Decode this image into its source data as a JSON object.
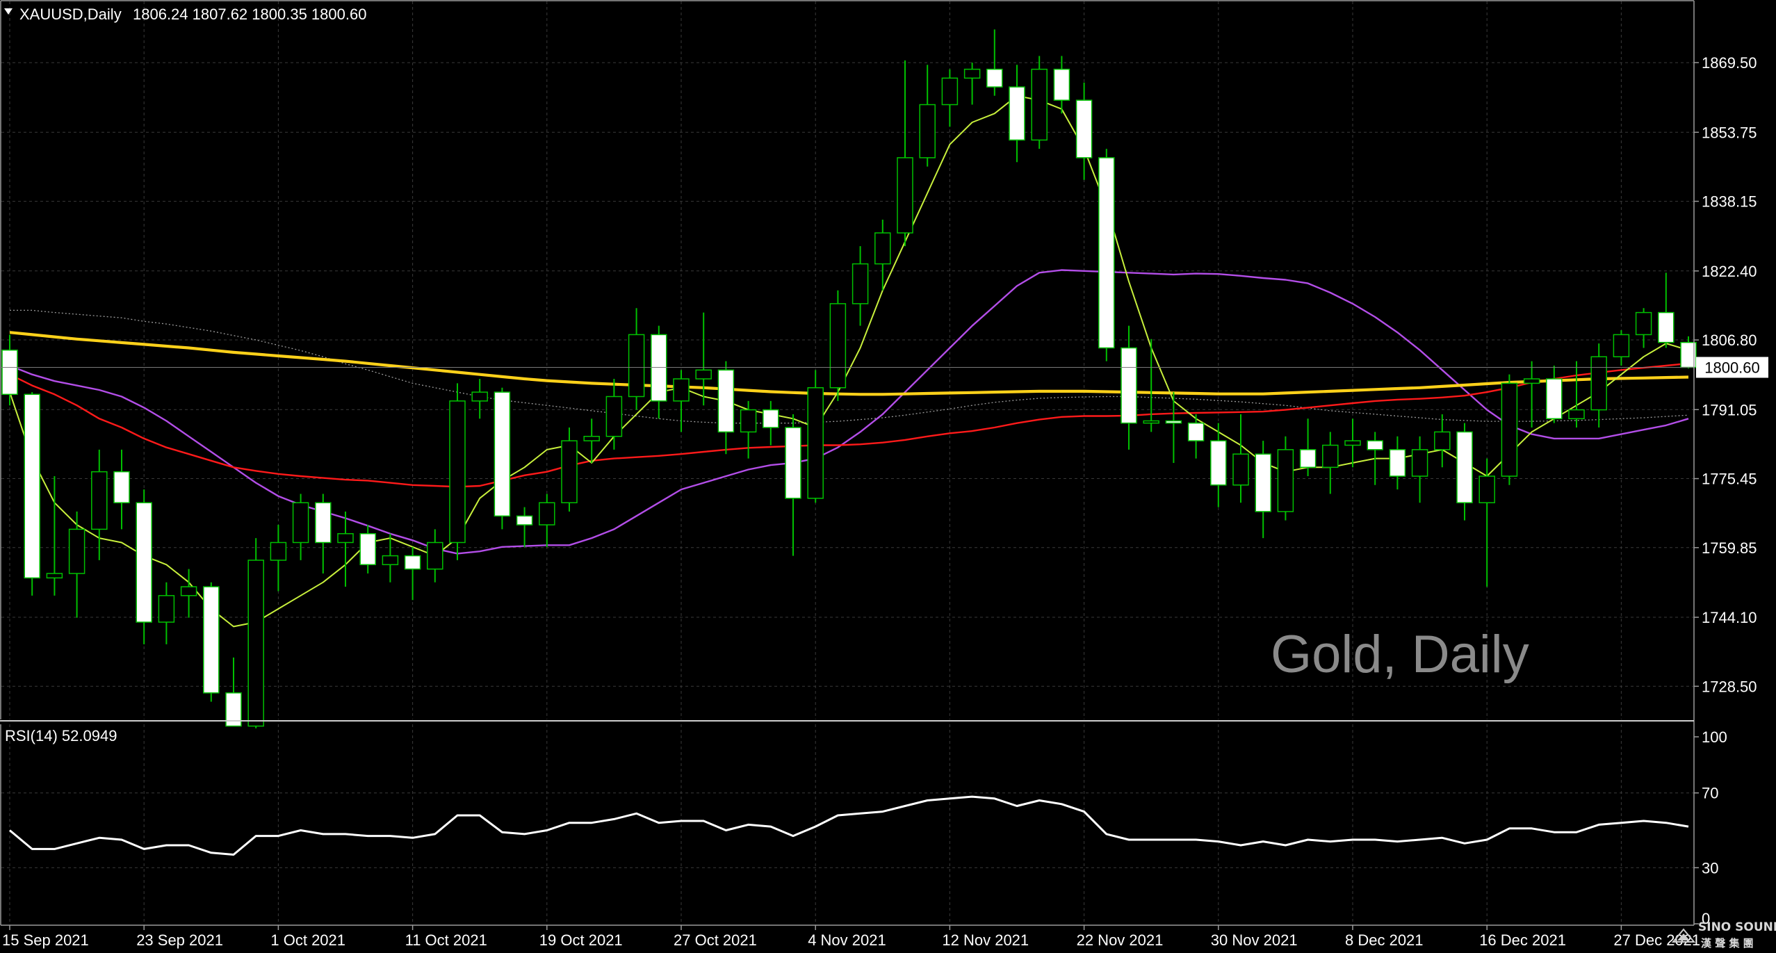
{
  "window": {
    "symbol_header": "XAUUSD,Daily",
    "ohlc_header": "1806.24 1807.62 1800.35 1800.60",
    "current_price_label": "1800.60",
    "watermark": "Gold, Daily",
    "rsi_header": "RSI(14) 52.0949",
    "logo_name": "SINO SOUND",
    "logo_sub": "漢 聲 集 團"
  },
  "colors": {
    "background": "#000000",
    "grid": "#3a3a3a",
    "bull_candle": "#00c000",
    "bear_candle_fill": "#ffffff",
    "ma_fast": "#c8f03c",
    "ma_red": "#ff1a1a",
    "ma_yellow": "#ffd11a",
    "ma_purple": "#b34ee8",
    "ma_grey": "#9a9a9a",
    "rsi_line": "#ffffff"
  },
  "chart_data": [
    {
      "type": "candlestick",
      "symbol": "XAUUSD",
      "timeframe": "Daily",
      "ohlc_current": {
        "open": 1806.24,
        "high": 1807.62,
        "low": 1800.35,
        "close": 1800.6
      },
      "y_ticks": [
        "1869.50",
        "1853.75",
        "1838.15",
        "1822.40",
        "1806.80",
        "1791.05",
        "1775.45",
        "1759.85",
        "1744.10",
        "1728.50"
      ],
      "ylim": [
        1721.0,
        1883.5
      ],
      "x_ticks": [
        {
          "label": "15 Sep 2021",
          "index": 0
        },
        {
          "label": "23 Sep 2021",
          "index": 6
        },
        {
          "label": "1 Oct 2021",
          "index": 12
        },
        {
          "label": "11 Oct 2021",
          "index": 18
        },
        {
          "label": "19 Oct 2021",
          "index": 24
        },
        {
          "label": "27 Oct 2021",
          "index": 30
        },
        {
          "label": "4 Nov 2021",
          "index": 36
        },
        {
          "label": "12 Nov 2021",
          "index": 42
        },
        {
          "label": "22 Nov 2021",
          "index": 48
        },
        {
          "label": "30 Nov 2021",
          "index": 54
        },
        {
          "label": "8 Dec 2021",
          "index": 60
        },
        {
          "label": "16 Dec 2021",
          "index": 66
        },
        {
          "label": "27 Dec 2021",
          "index": 72
        }
      ],
      "candles": [
        [
          1804.5,
          1808.0,
          1792.0,
          1794.5
        ],
        [
          1794.5,
          1795.0,
          1749.0,
          1753.0
        ],
        [
          1753.0,
          1776.0,
          1749.0,
          1754.0
        ],
        [
          1754.0,
          1768.0,
          1744.0,
          1764.0
        ],
        [
          1764.0,
          1782.0,
          1757.0,
          1777.0
        ],
        [
          1777.0,
          1782.0,
          1764.0,
          1770.0
        ],
        [
          1770.0,
          1773.0,
          1738.0,
          1743.0
        ],
        [
          1743.0,
          1752.0,
          1738.0,
          1749.0
        ],
        [
          1749.0,
          1755.0,
          1744.0,
          1751.0
        ],
        [
          1751.0,
          1752.0,
          1725.0,
          1727.0
        ],
        [
          1727.0,
          1735.0,
          1720.0,
          1719.5
        ],
        [
          1719.5,
          1762.0,
          1719.0,
          1757.0
        ],
        [
          1757.0,
          1765.0,
          1750.0,
          1761.0
        ],
        [
          1761.0,
          1772.0,
          1757.0,
          1770.0
        ],
        [
          1770.0,
          1772.0,
          1754.0,
          1761.0
        ],
        [
          1761.0,
          1768.0,
          1751.0,
          1763.0
        ],
        [
          1763.0,
          1765.0,
          1754.0,
          1756.0
        ],
        [
          1756.0,
          1763.0,
          1752.0,
          1758.0
        ],
        [
          1758.0,
          1760.0,
          1748.0,
          1755.0
        ],
        [
          1755.0,
          1764.0,
          1752.0,
          1761.0
        ],
        [
          1761.0,
          1797.0,
          1757.0,
          1793.0
        ],
        [
          1793.0,
          1798.0,
          1789.0,
          1795.0
        ],
        [
          1795.0,
          1796.0,
          1764.0,
          1767.0
        ],
        [
          1767.0,
          1769.0,
          1760.0,
          1765.0
        ],
        [
          1765.0,
          1772.0,
          1760.0,
          1770.0
        ],
        [
          1770.0,
          1787.0,
          1768.0,
          1784.0
        ],
        [
          1784.0,
          1789.0,
          1779.0,
          1785.0
        ],
        [
          1785.0,
          1798.0,
          1782.0,
          1794.0
        ],
        [
          1794.0,
          1814.0,
          1791.0,
          1808.0
        ],
        [
          1808.0,
          1810.0,
          1789.0,
          1793.0
        ],
        [
          1793.0,
          1800.0,
          1786.0,
          1798.0
        ],
        [
          1798.0,
          1813.0,
          1792.0,
          1800.0
        ],
        [
          1800.0,
          1802.0,
          1781.0,
          1786.0
        ],
        [
          1786.0,
          1793.0,
          1780.0,
          1791.0
        ],
        [
          1791.0,
          1793.0,
          1783.0,
          1787.0
        ],
        [
          1787.0,
          1790.0,
          1758.0,
          1771.0
        ],
        [
          1771.0,
          1800.0,
          1770.0,
          1796.0
        ],
        [
          1796.0,
          1818.0,
          1793.0,
          1815.0
        ],
        [
          1815.0,
          1828.0,
          1810.0,
          1824.0
        ],
        [
          1824.0,
          1834.0,
          1818.0,
          1831.0
        ],
        [
          1831.0,
          1870.0,
          1828.0,
          1848.0
        ],
        [
          1848.0,
          1869.0,
          1846.0,
          1860.0
        ],
        [
          1860.0,
          1868.0,
          1855.0,
          1866.0
        ],
        [
          1866.0,
          1869.5,
          1860.0,
          1868.0
        ],
        [
          1868.0,
          1877.0,
          1862.0,
          1864.0
        ],
        [
          1864.0,
          1869.0,
          1847.0,
          1852.0
        ],
        [
          1852.0,
          1871.0,
          1850.0,
          1868.0
        ],
        [
          1868.0,
          1871.0,
          1858.0,
          1861.0
        ],
        [
          1861.0,
          1865.0,
          1843.0,
          1848.0
        ],
        [
          1848.0,
          1850.0,
          1802.0,
          1805.0
        ],
        [
          1805.0,
          1810.0,
          1782.0,
          1788.0
        ],
        [
          1788.0,
          1807.0,
          1786.0,
          1788.5
        ],
        [
          1788.5,
          1795.0,
          1779.0,
          1788.0
        ],
        [
          1788.0,
          1790.0,
          1780.0,
          1784.0
        ],
        [
          1784.0,
          1788.0,
          1769.0,
          1774.0
        ],
        [
          1774.0,
          1790.0,
          1770.0,
          1781.0
        ],
        [
          1781.0,
          1784.0,
          1762.0,
          1768.0
        ],
        [
          1768.0,
          1785.0,
          1766.0,
          1782.0
        ],
        [
          1782.0,
          1789.0,
          1776.0,
          1778.0
        ],
        [
          1778.0,
          1786.0,
          1772.0,
          1783.0
        ],
        [
          1783.0,
          1789.0,
          1778.0,
          1784.0
        ],
        [
          1784.0,
          1786.0,
          1774.0,
          1782.0
        ],
        [
          1782.0,
          1785.0,
          1773.0,
          1776.0
        ],
        [
          1776.0,
          1785.0,
          1770.0,
          1782.0
        ],
        [
          1782.0,
          1790.0,
          1778.0,
          1786.0
        ],
        [
          1786.0,
          1788.0,
          1766.0,
          1770.0
        ],
        [
          1770.0,
          1780.0,
          1751.0,
          1776.0
        ],
        [
          1776.0,
          1799.0,
          1774.0,
          1797.0
        ],
        [
          1797.0,
          1802.0,
          1787.0,
          1798.0
        ],
        [
          1798.0,
          1801.0,
          1788.0,
          1789.0
        ],
        [
          1789.0,
          1802.0,
          1787.0,
          1791.0
        ],
        [
          1791.0,
          1806.0,
          1787.0,
          1803.0
        ],
        [
          1803.0,
          1809.0,
          1801.0,
          1808.0
        ],
        [
          1808.0,
          1814.0,
          1805.0,
          1813.0
        ],
        [
          1813.0,
          1822.0,
          1805.0,
          1806.24
        ],
        [
          1806.24,
          1807.62,
          1800.35,
          1800.6
        ]
      ],
      "series": [
        {
          "role": "ma_fast",
          "values": [
            1795.0,
            1780.0,
            1770.0,
            1765.0,
            1762.0,
            1761.0,
            1758.0,
            1756.0,
            1752.0,
            1746.0,
            1742.0,
            1743.0,
            1746.0,
            1749.0,
            1752.0,
            1756.0,
            1761.0,
            1762.0,
            1760.0,
            1758.0,
            1762.0,
            1771.0,
            1775.0,
            1778.0,
            1782.0,
            1783.0,
            1779.0,
            1785.0,
            1790.0,
            1795.0,
            1796.0,
            1794.0,
            1793.0,
            1791.0,
            1790.0,
            1789.0,
            1787.0,
            1795.0,
            1805.0,
            1818.0,
            1829.0,
            1840.0,
            1851.0,
            1856.0,
            1858.0,
            1862.0,
            1861.0,
            1859.0,
            1850.0,
            1837.0,
            1820.0,
            1805.0,
            1793.0,
            1789.0,
            1786.0,
            1783.0,
            1779.0,
            1777.0,
            1778.0,
            1778.0,
            1779.0,
            1780.0,
            1780.0,
            1781.0,
            1782.0,
            1779.0,
            1776.0,
            1781.0,
            1786.0,
            1789.0,
            1792.0,
            1795.0,
            1799.0,
            1803.0,
            1806.0,
            1804.5
          ]
        },
        {
          "role": "ma_red",
          "values": [
            1799.0,
            1796.5,
            1794.5,
            1792.0,
            1789.0,
            1787.0,
            1784.5,
            1782.5,
            1781.0,
            1779.5,
            1778.0,
            1777.2,
            1776.5,
            1776.0,
            1775.6,
            1775.2,
            1775.0,
            1774.5,
            1774.0,
            1773.8,
            1773.6,
            1773.8,
            1775.0,
            1776.2,
            1777.0,
            1778.4,
            1779.5,
            1780.0,
            1780.3,
            1780.6,
            1781.0,
            1781.5,
            1782.0,
            1782.4,
            1782.6,
            1782.8,
            1783.0,
            1783.0,
            1783.2,
            1783.6,
            1784.2,
            1785.0,
            1785.7,
            1786.2,
            1787.0,
            1788.0,
            1788.8,
            1789.4,
            1789.6,
            1789.6,
            1789.7,
            1790.0,
            1790.2,
            1790.3,
            1790.4,
            1790.5,
            1790.6,
            1791.0,
            1791.5,
            1792.0,
            1792.5,
            1793.0,
            1793.3,
            1793.5,
            1793.8,
            1794.2,
            1795.0,
            1796.0,
            1797.2,
            1798.0,
            1798.8,
            1799.4,
            1800.0,
            1800.5,
            1801.0,
            1801.5
          ]
        },
        {
          "role": "ma_yellow",
          "values": [
            1808.5,
            1808.0,
            1807.5,
            1807.0,
            1806.6,
            1806.2,
            1805.8,
            1805.4,
            1805.0,
            1804.5,
            1804.0,
            1803.6,
            1803.2,
            1802.8,
            1802.4,
            1802.0,
            1801.5,
            1801.0,
            1800.5,
            1800.0,
            1799.5,
            1799.0,
            1798.5,
            1798.0,
            1797.6,
            1797.3,
            1797.0,
            1796.8,
            1796.6,
            1796.4,
            1796.2,
            1796.0,
            1795.7,
            1795.4,
            1795.1,
            1794.9,
            1794.7,
            1794.6,
            1794.5,
            1794.5,
            1794.6,
            1794.7,
            1794.8,
            1794.9,
            1795.0,
            1795.1,
            1795.2,
            1795.2,
            1795.2,
            1795.1,
            1795.0,
            1794.9,
            1794.8,
            1794.7,
            1794.6,
            1794.6,
            1794.6,
            1794.8,
            1795.0,
            1795.2,
            1795.4,
            1795.6,
            1795.8,
            1796.0,
            1796.3,
            1796.6,
            1796.9,
            1797.2,
            1797.4,
            1797.6,
            1797.8,
            1798.0,
            1798.1,
            1798.2,
            1798.3,
            1798.4
          ]
        },
        {
          "role": "ma_purple",
          "values": [
            1801.0,
            1799.0,
            1797.5,
            1796.5,
            1795.5,
            1794.0,
            1791.5,
            1788.5,
            1785.0,
            1781.5,
            1778.0,
            1774.5,
            1771.5,
            1769.5,
            1768.0,
            1766.5,
            1764.8,
            1763.0,
            1761.5,
            1759.6,
            1758.5,
            1759.0,
            1760.0,
            1760.2,
            1760.4,
            1760.4,
            1762.0,
            1764.0,
            1767.0,
            1770.0,
            1773.0,
            1774.5,
            1776.0,
            1777.5,
            1778.5,
            1779.0,
            1780.0,
            1782.5,
            1786.0,
            1790.0,
            1795.0,
            1800.0,
            1805.0,
            1810.0,
            1814.5,
            1819.0,
            1822.0,
            1822.6,
            1822.4,
            1822.2,
            1822.0,
            1821.8,
            1821.6,
            1821.8,
            1821.7,
            1821.3,
            1820.8,
            1820.4,
            1819.6,
            1817.5,
            1815.0,
            1812.0,
            1808.5,
            1804.5,
            1800.0,
            1795.5,
            1791.0,
            1787.5,
            1785.5,
            1784.5,
            1784.5,
            1784.5,
            1785.5,
            1786.5,
            1787.5,
            1789.0
          ]
        },
        {
          "role": "ma_grey",
          "values": [
            1813.5,
            1813.5,
            1813.0,
            1812.6,
            1812.2,
            1811.8,
            1811.0,
            1810.4,
            1809.6,
            1808.8,
            1807.8,
            1806.8,
            1805.6,
            1804.4,
            1803.0,
            1801.4,
            1800.0,
            1798.5,
            1797.0,
            1796.0,
            1795.0,
            1794.0,
            1793.2,
            1792.6,
            1792.0,
            1791.4,
            1790.8,
            1790.2,
            1789.6,
            1789.0,
            1788.5,
            1788.2,
            1788.0,
            1788.0,
            1788.0,
            1788.0,
            1788.2,
            1788.4,
            1788.8,
            1789.2,
            1789.8,
            1790.5,
            1791.2,
            1792.0,
            1792.7,
            1793.2,
            1793.6,
            1793.8,
            1793.9,
            1794.0,
            1794.0,
            1793.8,
            1793.6,
            1793.4,
            1793.1,
            1792.8,
            1792.4,
            1792.0,
            1791.4,
            1790.8,
            1790.4,
            1790.0,
            1789.6,
            1789.2,
            1788.8,
            1788.6,
            1788.4,
            1788.4,
            1788.4,
            1788.5,
            1788.6,
            1788.8,
            1789.0,
            1789.2,
            1789.5,
            1789.8
          ]
        }
      ]
    },
    {
      "type": "line",
      "indicator": "RSI(14)",
      "current_value": 52.0949,
      "y_ticks": [
        "100",
        "70",
        "30",
        "0"
      ],
      "ylim": [
        0,
        100
      ],
      "series": [
        {
          "role": "rsi",
          "values": [
            50,
            40,
            40,
            43,
            46,
            45,
            40,
            42,
            42,
            38,
            37,
            47,
            47,
            50,
            48,
            48,
            47,
            47,
            46,
            48,
            58,
            58,
            49,
            48,
            50,
            54,
            54,
            56,
            59,
            54,
            55,
            55,
            50,
            53,
            52,
            47,
            52,
            58,
            59,
            60,
            63,
            66,
            67,
            68,
            67,
            63,
            66,
            64,
            60,
            48,
            45,
            45,
            45,
            45,
            44,
            42,
            44,
            42,
            45,
            44,
            45,
            45,
            44,
            45,
            46,
            43,
            45,
            51,
            51,
            49,
            49,
            53,
            54,
            55,
            54,
            52
          ]
        }
      ]
    }
  ]
}
